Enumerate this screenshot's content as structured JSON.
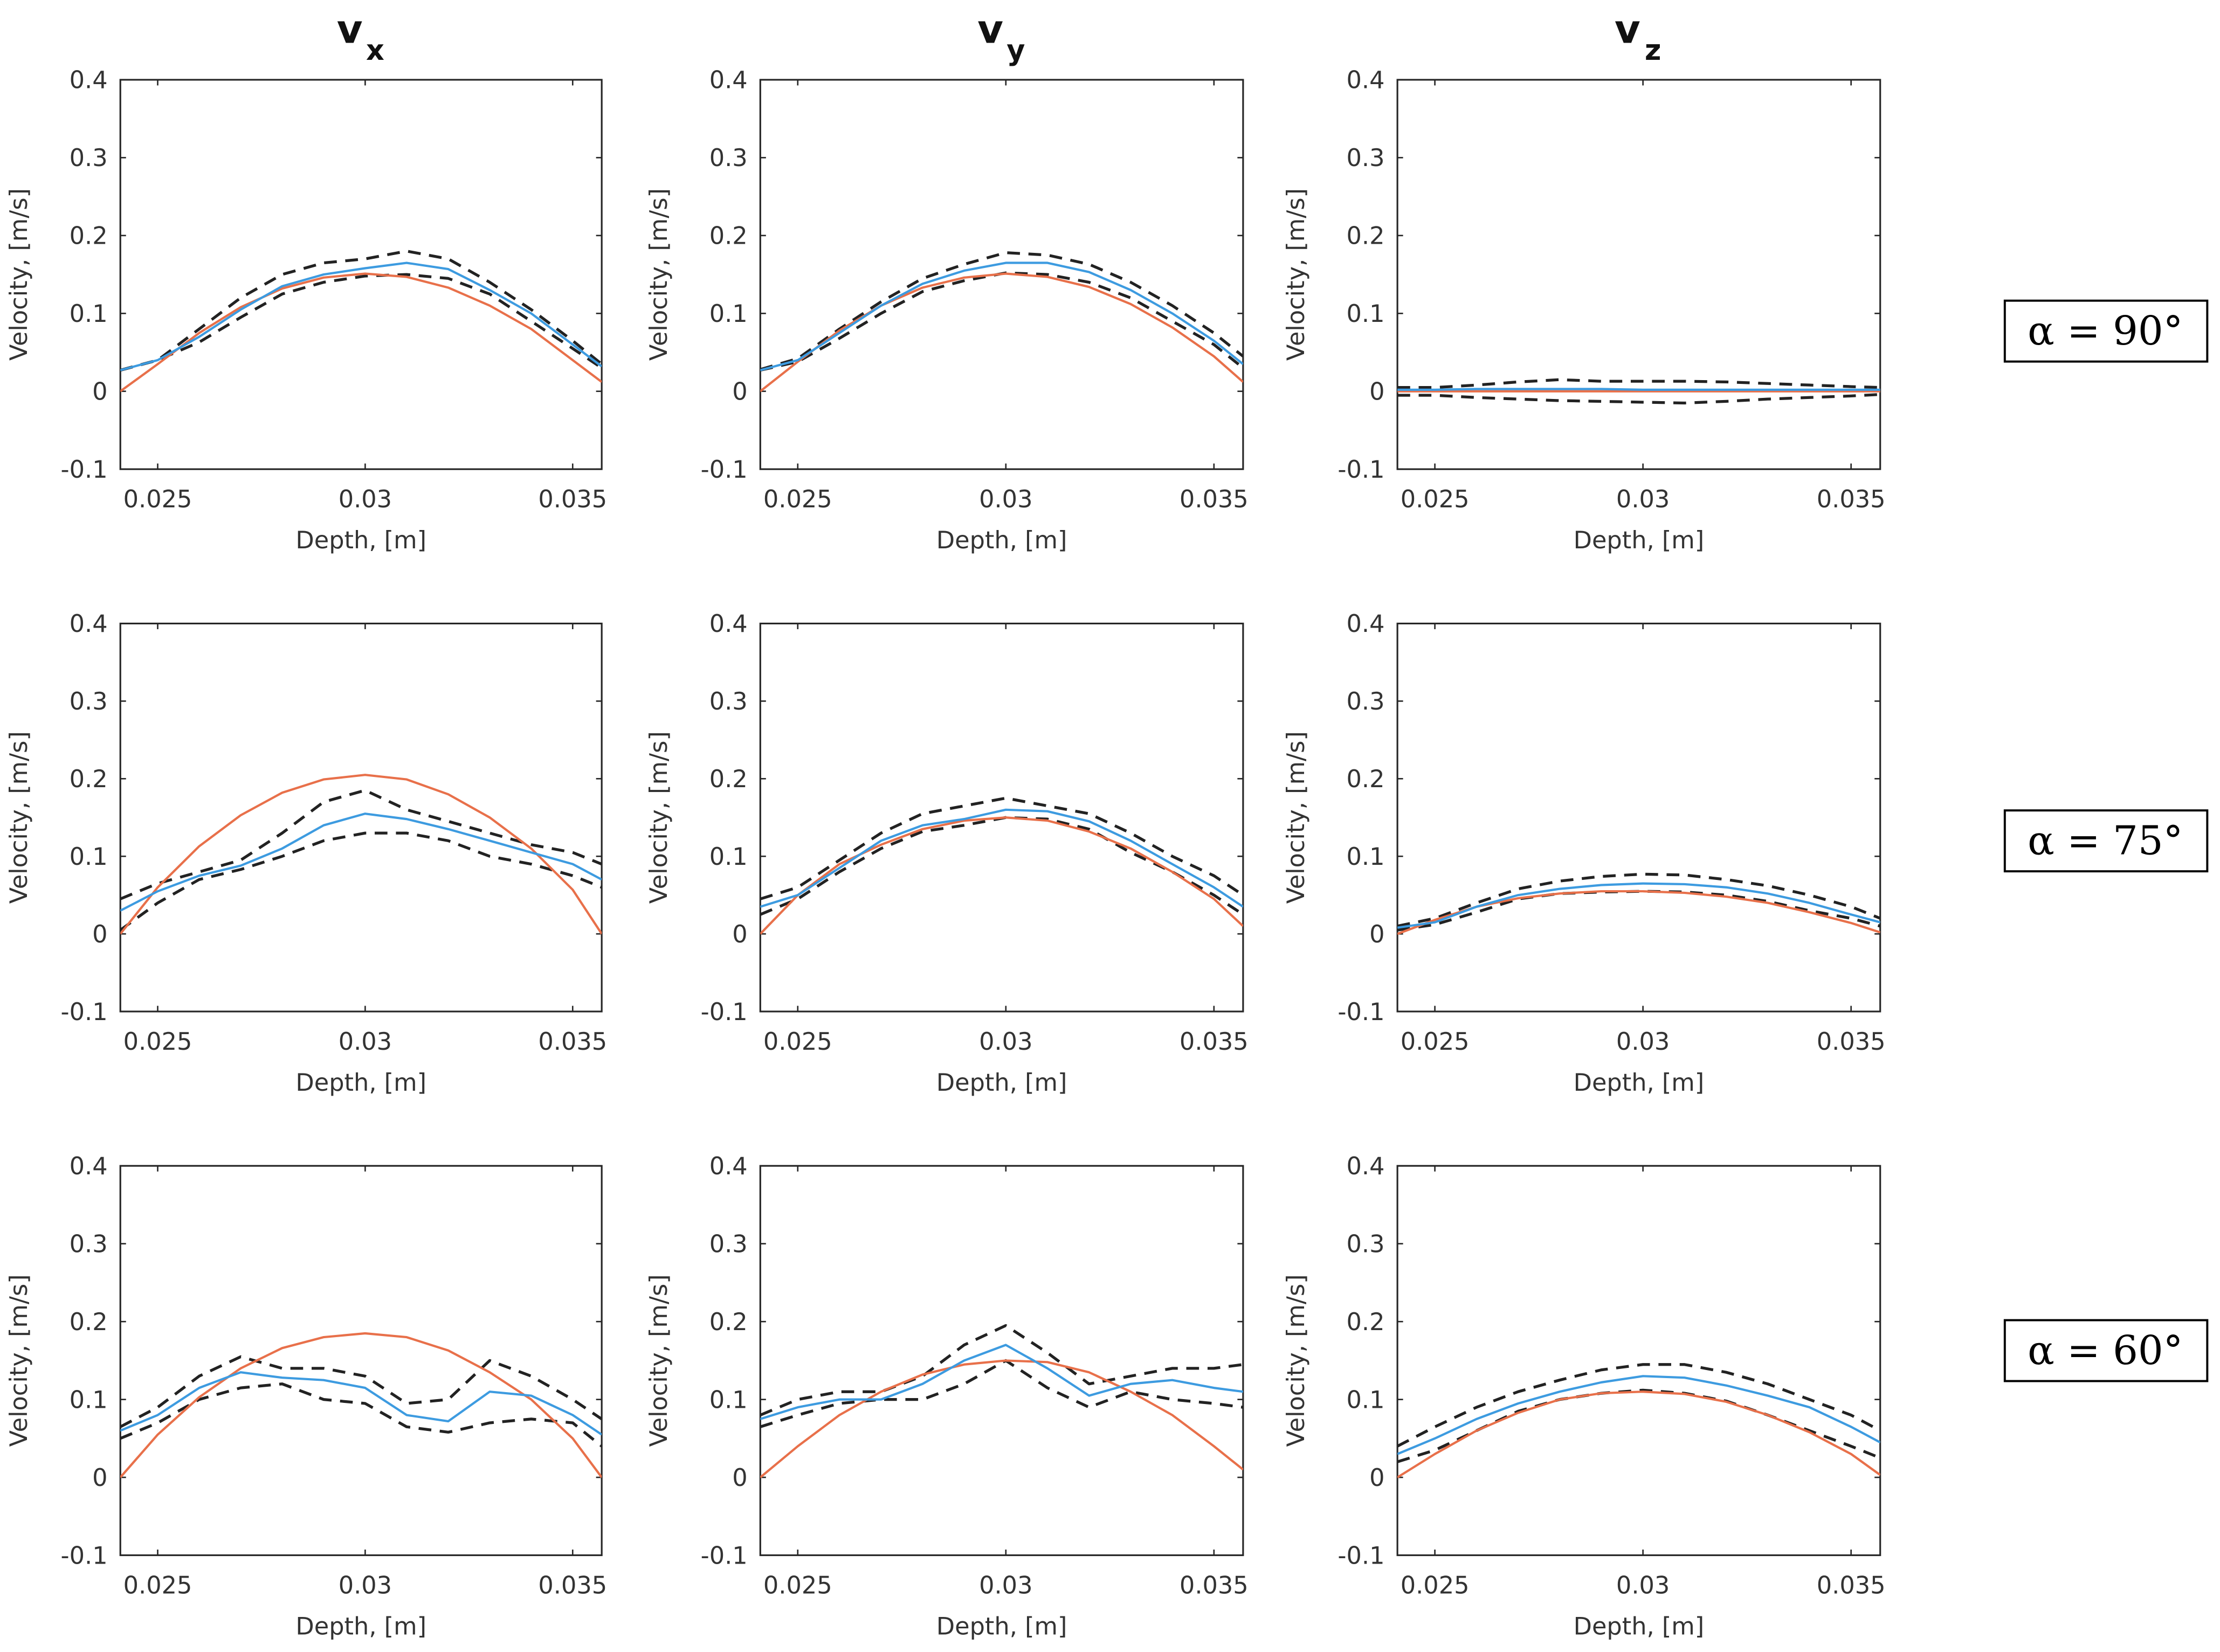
{
  "chart_data": {
    "type": "line",
    "layout": "3x3 grid",
    "column_titles": [
      {
        "base": "v",
        "sub": "x"
      },
      {
        "base": "v",
        "sub": "y"
      },
      {
        "base": "v",
        "sub": "z"
      }
    ],
    "row_labels": [
      "α = 90°",
      "α = 75°",
      "α = 60°"
    ],
    "xlabel": "Depth, [m]",
    "ylabel": "Velocity, [m/s]",
    "xlim": [
      0.0241,
      0.0357
    ],
    "ylim": [
      -0.1,
      0.4
    ],
    "xticks": [
      0.025,
      0.03,
      0.035
    ],
    "xtick_labels": [
      "0.025",
      "0.03",
      "0.035"
    ],
    "yticks": [
      -0.1,
      0,
      0.1,
      0.2,
      0.3,
      0.4
    ],
    "ytick_labels": [
      "-0.1",
      "0",
      "0.1",
      "0.2",
      "0.3",
      "0.4"
    ],
    "grid": false,
    "series_styles": {
      "theory": {
        "color": "#e8704a",
        "dash": "solid"
      },
      "mean": {
        "color": "#3d9be0",
        "dash": "solid"
      },
      "upper": {
        "color": "#222222",
        "dash": "dashed"
      },
      "lower": {
        "color": "#222222",
        "dash": "dashed"
      }
    },
    "x": [
      0.0241,
      0.025,
      0.026,
      0.027,
      0.028,
      0.029,
      0.03,
      0.031,
      0.032,
      0.033,
      0.034,
      0.035,
      0.0357
    ],
    "panels": [
      {
        "row": 0,
        "col": 0,
        "series": {
          "theory": [
            0,
            0.035,
            0.075,
            0.108,
            0.132,
            0.146,
            0.151,
            0.147,
            0.133,
            0.11,
            0.08,
            0.04,
            0.012
          ],
          "mean": [
            0.027,
            0.04,
            0.07,
            0.105,
            0.135,
            0.15,
            0.158,
            0.165,
            0.157,
            0.13,
            0.1,
            0.06,
            0.032
          ],
          "upper": [
            0.027,
            0.04,
            0.08,
            0.12,
            0.15,
            0.165,
            0.17,
            0.18,
            0.17,
            0.14,
            0.105,
            0.065,
            0.035
          ],
          "lower": [
            0.027,
            0.04,
            0.063,
            0.095,
            0.125,
            0.14,
            0.148,
            0.15,
            0.145,
            0.125,
            0.09,
            0.055,
            0.03
          ]
        }
      },
      {
        "row": 0,
        "col": 1,
        "series": {
          "theory": [
            0,
            0.038,
            0.078,
            0.11,
            0.133,
            0.146,
            0.151,
            0.147,
            0.134,
            0.112,
            0.082,
            0.045,
            0.012
          ],
          "mean": [
            0.027,
            0.04,
            0.075,
            0.11,
            0.138,
            0.155,
            0.165,
            0.165,
            0.153,
            0.13,
            0.1,
            0.065,
            0.035
          ],
          "upper": [
            0.028,
            0.042,
            0.08,
            0.115,
            0.145,
            0.163,
            0.178,
            0.175,
            0.163,
            0.14,
            0.11,
            0.075,
            0.045
          ],
          "lower": [
            0.027,
            0.038,
            0.068,
            0.1,
            0.128,
            0.142,
            0.152,
            0.15,
            0.14,
            0.12,
            0.09,
            0.06,
            0.03
          ]
        }
      },
      {
        "row": 0,
        "col": 2,
        "series": {
          "theory": [
            0,
            0,
            0,
            0,
            0,
            0,
            0,
            0,
            0,
            0,
            0,
            0,
            0
          ],
          "mean": [
            0.002,
            0.002,
            0.003,
            0.003,
            0.003,
            0.003,
            0.002,
            0.002,
            0.002,
            0.002,
            0.002,
            0.002,
            0.002
          ],
          "upper": [
            0.005,
            0.005,
            0.008,
            0.012,
            0.015,
            0.013,
            0.013,
            0.013,
            0.012,
            0.01,
            0.008,
            0.006,
            0.005
          ],
          "lower": [
            -0.005,
            -0.005,
            -0.008,
            -0.01,
            -0.012,
            -0.013,
            -0.014,
            -0.015,
            -0.013,
            -0.01,
            -0.008,
            -0.006,
            -0.004
          ]
        }
      },
      {
        "row": 1,
        "col": 0,
        "series": {
          "theory": [
            0,
            0.06,
            0.113,
            0.153,
            0.182,
            0.199,
            0.205,
            0.199,
            0.18,
            0.15,
            0.11,
            0.057,
            0
          ],
          "mean": [
            0.03,
            0.055,
            0.075,
            0.088,
            0.11,
            0.14,
            0.155,
            0.148,
            0.135,
            0.12,
            0.105,
            0.09,
            0.07
          ],
          "upper": [
            0.045,
            0.065,
            0.08,
            0.095,
            0.13,
            0.17,
            0.185,
            0.16,
            0.145,
            0.13,
            0.115,
            0.105,
            0.09
          ],
          "lower": [
            0.005,
            0.04,
            0.07,
            0.083,
            0.1,
            0.12,
            0.13,
            0.13,
            0.12,
            0.1,
            0.09,
            0.075,
            0.06
          ]
        }
      },
      {
        "row": 1,
        "col": 1,
        "series": {
          "theory": [
            0,
            0.05,
            0.09,
            0.115,
            0.135,
            0.146,
            0.15,
            0.146,
            0.132,
            0.11,
            0.08,
            0.045,
            0.01
          ],
          "mean": [
            0.035,
            0.05,
            0.085,
            0.12,
            0.14,
            0.148,
            0.16,
            0.158,
            0.145,
            0.12,
            0.09,
            0.06,
            0.035
          ],
          "upper": [
            0.045,
            0.06,
            0.095,
            0.13,
            0.155,
            0.165,
            0.175,
            0.165,
            0.155,
            0.13,
            0.1,
            0.075,
            0.05
          ],
          "lower": [
            0.025,
            0.045,
            0.08,
            0.11,
            0.132,
            0.14,
            0.15,
            0.148,
            0.135,
            0.105,
            0.08,
            0.05,
            0.025
          ]
        }
      },
      {
        "row": 1,
        "col": 2,
        "series": {
          "theory": [
            0,
            0.018,
            0.035,
            0.046,
            0.052,
            0.055,
            0.055,
            0.053,
            0.048,
            0.04,
            0.028,
            0.014,
            0.002
          ],
          "mean": [
            0.008,
            0.015,
            0.035,
            0.05,
            0.058,
            0.063,
            0.065,
            0.064,
            0.06,
            0.052,
            0.04,
            0.025,
            0.015
          ],
          "upper": [
            0.01,
            0.02,
            0.04,
            0.058,
            0.068,
            0.074,
            0.077,
            0.076,
            0.07,
            0.062,
            0.05,
            0.035,
            0.02
          ],
          "lower": [
            0.005,
            0.012,
            0.028,
            0.045,
            0.052,
            0.054,
            0.055,
            0.054,
            0.05,
            0.042,
            0.03,
            0.02,
            0.01
          ]
        }
      },
      {
        "row": 2,
        "col": 0,
        "series": {
          "theory": [
            0,
            0.055,
            0.103,
            0.14,
            0.166,
            0.18,
            0.185,
            0.18,
            0.163,
            0.135,
            0.1,
            0.05,
            0
          ],
          "mean": [
            0.06,
            0.08,
            0.115,
            0.135,
            0.128,
            0.125,
            0.115,
            0.08,
            0.072,
            0.11,
            0.105,
            0.08,
            0.055
          ],
          "upper": [
            0.065,
            0.09,
            0.13,
            0.155,
            0.14,
            0.14,
            0.13,
            0.095,
            0.1,
            0.15,
            0.13,
            0.1,
            0.075
          ],
          "lower": [
            0.05,
            0.07,
            0.1,
            0.115,
            0.12,
            0.1,
            0.095,
            0.065,
            0.058,
            0.07,
            0.075,
            0.07,
            0.04
          ]
        }
      },
      {
        "row": 2,
        "col": 1,
        "series": {
          "theory": [
            0,
            0.04,
            0.08,
            0.11,
            0.132,
            0.145,
            0.15,
            0.148,
            0.135,
            0.11,
            0.08,
            0.04,
            0.01
          ],
          "mean": [
            0.075,
            0.09,
            0.1,
            0.1,
            0.12,
            0.15,
            0.17,
            0.14,
            0.105,
            0.12,
            0.125,
            0.115,
            0.11
          ],
          "upper": [
            0.08,
            0.1,
            0.11,
            0.11,
            0.13,
            0.17,
            0.195,
            0.16,
            0.12,
            0.13,
            0.14,
            0.14,
            0.145
          ],
          "lower": [
            0.065,
            0.08,
            0.095,
            0.1,
            0.1,
            0.12,
            0.15,
            0.115,
            0.09,
            0.11,
            0.1,
            0.095,
            0.09
          ]
        }
      },
      {
        "row": 2,
        "col": 2,
        "series": {
          "theory": [
            0,
            0.03,
            0.06,
            0.083,
            0.1,
            0.108,
            0.11,
            0.107,
            0.097,
            0.08,
            0.058,
            0.03,
            0.003
          ],
          "mean": [
            0.03,
            0.05,
            0.075,
            0.095,
            0.11,
            0.122,
            0.13,
            0.128,
            0.118,
            0.105,
            0.09,
            0.065,
            0.045
          ],
          "upper": [
            0.04,
            0.065,
            0.09,
            0.11,
            0.125,
            0.138,
            0.145,
            0.145,
            0.135,
            0.12,
            0.1,
            0.08,
            0.06
          ],
          "lower": [
            0.02,
            0.035,
            0.06,
            0.085,
            0.1,
            0.108,
            0.112,
            0.108,
            0.098,
            0.08,
            0.06,
            0.04,
            0.025
          ]
        }
      }
    ]
  }
}
